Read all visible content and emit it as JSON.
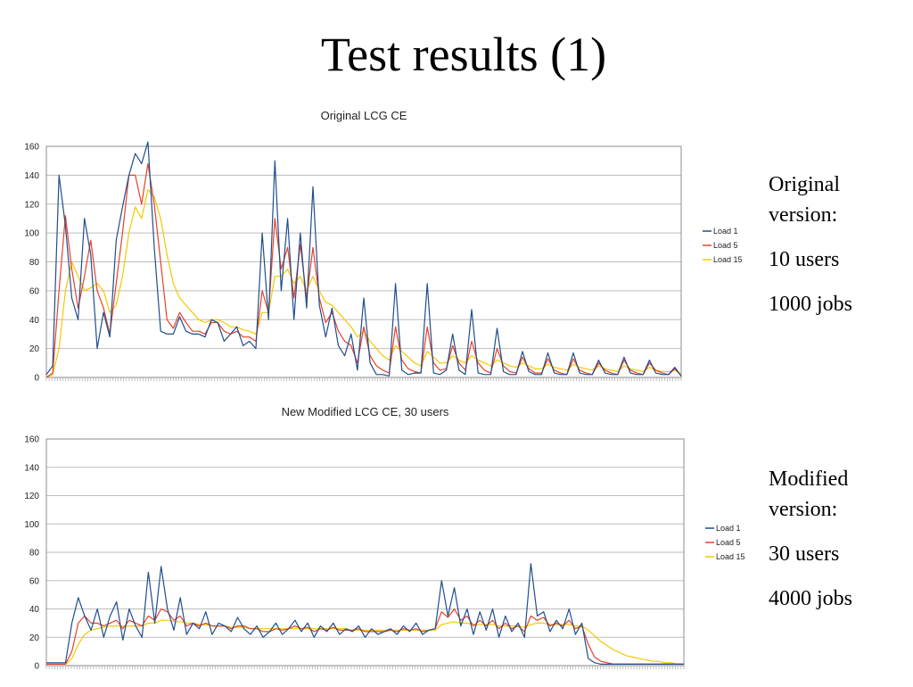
{
  "slide": {
    "title": "Test results (1)"
  },
  "notes": {
    "original": {
      "line1": "Original",
      "line2": "version:",
      "users": "10 users",
      "jobs": "1000 jobs"
    },
    "modified": {
      "line1": "Modified",
      "line2": "version:",
      "users": "30 users",
      "jobs": "4000 jobs"
    }
  },
  "chart_data": [
    {
      "type": "line",
      "title": "Original LCG CE",
      "xlabel": "",
      "ylabel": "",
      "ylim": [
        0,
        160
      ],
      "yticks": [
        0,
        20,
        40,
        60,
        80,
        100,
        120,
        140,
        160
      ],
      "grid": true,
      "legend_position": "right",
      "x": [
        0,
        1,
        2,
        3,
        4,
        5,
        6,
        7,
        8,
        9,
        10,
        11,
        12,
        13,
        14,
        15,
        16,
        17,
        18,
        19,
        20,
        21,
        22,
        23,
        24,
        25,
        26,
        27,
        28,
        29,
        30,
        31,
        32,
        33,
        34,
        35,
        36,
        37,
        38,
        39,
        40,
        41,
        42,
        43,
        44,
        45,
        46,
        47,
        48,
        49,
        50,
        51,
        52,
        53,
        54,
        55,
        56,
        57,
        58,
        59,
        60,
        61,
        62,
        63,
        64,
        65,
        66,
        67,
        68,
        69,
        70,
        71,
        72,
        73,
        74,
        75,
        76,
        77,
        78,
        79,
        80,
        81,
        82,
        83,
        84,
        85,
        86,
        87,
        88,
        89,
        90,
        91,
        92,
        93,
        94,
        95,
        96,
        97,
        98,
        99,
        100
      ],
      "series": [
        {
          "name": "Load 1",
          "color": "#1f4e8c",
          "values": [
            2,
            8,
            140,
            105,
            55,
            40,
            110,
            85,
            20,
            45,
            28,
            95,
            118,
            140,
            155,
            148,
            163,
            90,
            32,
            30,
            30,
            42,
            32,
            30,
            30,
            28,
            40,
            38,
            25,
            30,
            35,
            22,
            25,
            20,
            100,
            40,
            150,
            60,
            110,
            40,
            100,
            48,
            132,
            50,
            28,
            48,
            22,
            15,
            30,
            5,
            55,
            10,
            2,
            2,
            1,
            65,
            5,
            2,
            3,
            3,
            65,
            3,
            2,
            5,
            30,
            5,
            2,
            47,
            3,
            2,
            2,
            34,
            4,
            2,
            2,
            18,
            4,
            2,
            2,
            17,
            3,
            2,
            2,
            17,
            3,
            2,
            2,
            12,
            3,
            2,
            2,
            14,
            3,
            2,
            2,
            12,
            3,
            2,
            2,
            7,
            1
          ]
        },
        {
          "name": "Load 5",
          "color": "#e8412a",
          "values": [
            0,
            3,
            60,
            112,
            75,
            48,
            70,
            95,
            60,
            48,
            30,
            65,
            100,
            140,
            140,
            120,
            148,
            120,
            80,
            40,
            34,
            45,
            38,
            32,
            32,
            30,
            38,
            38,
            32,
            30,
            32,
            28,
            28,
            25,
            60,
            45,
            110,
            75,
            90,
            55,
            92,
            55,
            90,
            55,
            38,
            45,
            32,
            25,
            22,
            10,
            35,
            15,
            8,
            5,
            3,
            35,
            12,
            6,
            4,
            3,
            35,
            10,
            5,
            6,
            22,
            10,
            5,
            25,
            10,
            5,
            3,
            20,
            8,
            4,
            3,
            14,
            6,
            3,
            3,
            13,
            5,
            3,
            2,
            13,
            5,
            3,
            2,
            10,
            5,
            3,
            2,
            12,
            5,
            3,
            2,
            10,
            5,
            3,
            2,
            6,
            1
          ]
        },
        {
          "name": "Load 15",
          "color": "#f5c800",
          "values": [
            0,
            2,
            20,
            60,
            80,
            70,
            60,
            62,
            65,
            60,
            45,
            50,
            70,
            100,
            118,
            110,
            130,
            125,
            110,
            85,
            65,
            55,
            50,
            45,
            40,
            38,
            40,
            40,
            38,
            35,
            35,
            33,
            32,
            30,
            45,
            45,
            70,
            70,
            75,
            65,
            70,
            60,
            70,
            60,
            52,
            50,
            45,
            40,
            35,
            28,
            32,
            25,
            20,
            15,
            12,
            22,
            18,
            14,
            10,
            8,
            18,
            14,
            10,
            10,
            15,
            12,
            10,
            15,
            12,
            10,
            8,
            12,
            10,
            8,
            7,
            10,
            8,
            6,
            6,
            9,
            7,
            6,
            5,
            9,
            7,
            6,
            5,
            8,
            6,
            5,
            4,
            8,
            6,
            5,
            4,
            7,
            5,
            4,
            4,
            5,
            2
          ]
        }
      ]
    },
    {
      "type": "line",
      "title": "New Modified LCG CE, 30 users",
      "xlabel": "",
      "ylabel": "",
      "ylim": [
        0,
        160
      ],
      "yticks": [
        0,
        20,
        40,
        60,
        80,
        100,
        120,
        140,
        160
      ],
      "grid": true,
      "legend_position": "right",
      "x": [
        0,
        1,
        2,
        3,
        4,
        5,
        6,
        7,
        8,
        9,
        10,
        11,
        12,
        13,
        14,
        15,
        16,
        17,
        18,
        19,
        20,
        21,
        22,
        23,
        24,
        25,
        26,
        27,
        28,
        29,
        30,
        31,
        32,
        33,
        34,
        35,
        36,
        37,
        38,
        39,
        40,
        41,
        42,
        43,
        44,
        45,
        46,
        47,
        48,
        49,
        50,
        51,
        52,
        53,
        54,
        55,
        56,
        57,
        58,
        59,
        60,
        61,
        62,
        63,
        64,
        65,
        66,
        67,
        68,
        69,
        70,
        71,
        72,
        73,
        74,
        75,
        76,
        77,
        78,
        79,
        80,
        81,
        82,
        83,
        84,
        85,
        86,
        87,
        88,
        89,
        90,
        91,
        92,
        93,
        94,
        95,
        96,
        97,
        98,
        99,
        100
      ],
      "series": [
        {
          "name": "Load 1",
          "color": "#1f4e8c",
          "values": [
            2,
            2,
            2,
            2,
            30,
            48,
            35,
            25,
            40,
            20,
            35,
            45,
            18,
            40,
            28,
            20,
            66,
            30,
            70,
            40,
            25,
            48,
            22,
            30,
            26,
            38,
            22,
            30,
            28,
            24,
            34,
            26,
            22,
            28,
            20,
            24,
            30,
            22,
            26,
            32,
            24,
            30,
            20,
            28,
            24,
            30,
            22,
            26,
            24,
            28,
            20,
            26,
            22,
            24,
            26,
            22,
            28,
            24,
            30,
            22,
            25,
            26,
            60,
            35,
            55,
            28,
            40,
            22,
            38,
            25,
            40,
            20,
            35,
            24,
            30,
            20,
            72,
            35,
            38,
            24,
            32,
            26,
            40,
            22,
            30,
            5,
            2,
            1,
            1,
            1,
            1,
            1,
            1,
            1,
            1,
            1,
            1,
            1,
            1,
            1,
            1
          ]
        },
        {
          "name": "Load 5",
          "color": "#e8412a",
          "values": [
            1,
            1,
            1,
            1,
            10,
            30,
            35,
            30,
            30,
            28,
            30,
            32,
            26,
            32,
            30,
            28,
            35,
            32,
            40,
            38,
            32,
            35,
            28,
            30,
            28,
            30,
            28,
            28,
            28,
            26,
            28,
            28,
            26,
            26,
            24,
            24,
            26,
            25,
            26,
            28,
            26,
            27,
            24,
            26,
            25,
            27,
            25,
            25,
            25,
            26,
            24,
            24,
            24,
            24,
            25,
            24,
            26,
            25,
            26,
            24,
            25,
            26,
            38,
            34,
            40,
            32,
            35,
            28,
            32,
            28,
            32,
            26,
            30,
            26,
            28,
            24,
            35,
            32,
            34,
            28,
            30,
            28,
            32,
            26,
            28,
            15,
            6,
            3,
            2,
            1,
            1,
            1,
            1,
            1,
            1,
            1,
            1,
            1,
            1,
            1,
            1
          ]
        },
        {
          "name": "Load 15",
          "color": "#f5c800",
          "values": [
            1,
            1,
            1,
            1,
            5,
            15,
            22,
            25,
            26,
            27,
            28,
            28,
            28,
            28,
            28,
            28,
            30,
            30,
            32,
            32,
            31,
            31,
            30,
            30,
            29,
            29,
            28,
            28,
            28,
            27,
            27,
            27,
            26,
            26,
            26,
            26,
            26,
            26,
            26,
            26,
            26,
            26,
            26,
            26,
            26,
            26,
            26,
            26,
            25,
            25,
            25,
            25,
            25,
            25,
            25,
            25,
            25,
            25,
            25,
            25,
            25,
            25,
            29,
            30,
            31,
            30,
            30,
            29,
            29,
            29,
            29,
            28,
            28,
            28,
            28,
            27,
            29,
            30,
            30,
            29,
            29,
            29,
            29,
            28,
            28,
            25,
            21,
            17,
            14,
            11,
            9,
            7,
            6,
            5,
            4,
            3,
            3,
            2,
            2,
            1,
            1
          ]
        }
      ]
    }
  ]
}
